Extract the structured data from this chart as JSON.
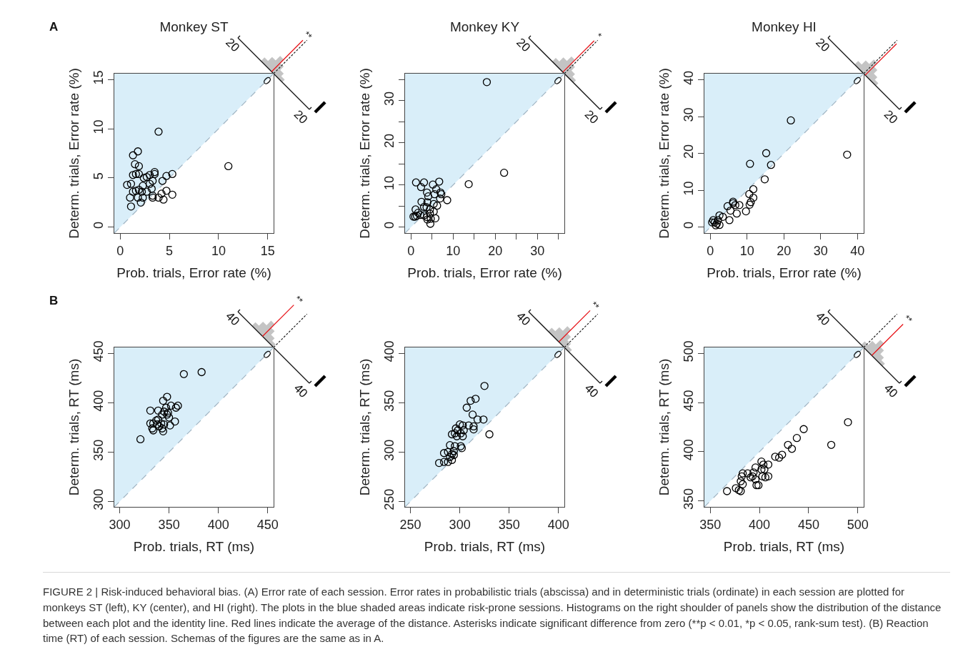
{
  "chart_data": [
    {
      "type": "scatter",
      "title": "Monkey ST",
      "xlabel": "Prob. trials, Error rate (%)",
      "ylabel": "Determ. trials, Error rate (%)",
      "xlim": [
        -0.6,
        15.6
      ],
      "ylim": [
        -0.6,
        15.6
      ],
      "xticks": [
        0,
        5,
        10,
        15
      ],
      "yticks": [
        0,
        5,
        10,
        15
      ],
      "annotations": [
        "20",
        "20",
        "0",
        "**",
        "A"
      ],
      "series": [
        {
          "type": "line",
          "line_style": "dashed",
          "color": "#9fb3c2",
          "x": [
            -0.6,
            15.6
          ],
          "values": [
            -0.6,
            15.6
          ]
        },
        {
          "type": "scatter",
          "marker": "circle",
          "color": "#000000",
          "x": [
            3.9,
            11.0,
            1.8,
            1.3,
            1.5,
            1.9,
            1.3,
            1.6,
            1.9,
            0.7,
            1.1,
            2.4,
            2.7,
            3.0,
            3.5,
            3.5,
            3.3,
            3.0,
            2.3,
            3.2,
            5.3,
            4.7,
            4.3,
            1.3,
            1.6,
            2.2,
            2.7,
            1.0,
            1.8,
            2.3,
            2.1,
            1.1,
            3.3,
            3.3,
            3.9,
            4.2,
            4.7,
            4.4,
            5.3,
            1.9
          ],
          "values": [
            9.7,
            6.2,
            7.7,
            7.3,
            6.4,
            6.2,
            5.3,
            5.4,
            5.4,
            4.3,
            4.4,
            5.0,
            5.1,
            5.3,
            5.6,
            5.4,
            4.7,
            4.4,
            4.2,
            3.9,
            5.4,
            5.2,
            4.7,
            3.6,
            3.7,
            3.6,
            3.6,
            3.0,
            3.0,
            3.0,
            2.5,
            2.1,
            3.2,
            3.0,
            3.0,
            3.4,
            3.7,
            2.8,
            3.3,
            3.8
          ]
        }
      ]
    },
    {
      "type": "scatter",
      "title": "Monkey KY",
      "xlabel": "Prob. trials, Error rate (%)",
      "ylabel": "Determ. trials, Error rate (%)",
      "xlim": [
        -1.4,
        36.4
      ],
      "ylim": [
        -1.4,
        36.4
      ],
      "xticks": [
        0,
        {
          "value": 5,
          "label": null
        },
        10,
        {
          "value": 15,
          "label": null
        },
        20,
        {
          "value": 25,
          "label": null
        },
        30,
        {
          "value": 35,
          "label": null
        }
      ],
      "yticks": [
        0,
        {
          "value": 5,
          "label": null
        },
        10,
        {
          "value": 15,
          "label": null
        },
        20,
        {
          "value": 25,
          "label": null
        },
        30,
        {
          "value": 35,
          "label": null
        }
      ],
      "annotations": [
        "20",
        "20",
        "0",
        "*"
      ],
      "series": [
        {
          "type": "line",
          "line_style": "dashed",
          "color": "#9fb3c2",
          "x": [
            -1.4,
            36.4
          ],
          "values": [
            -1.4,
            36.4
          ]
        },
        {
          "type": "scatter",
          "marker": "circle",
          "color": "#000000",
          "x": [
            18.0,
            22.1,
            13.7,
            8.6,
            1.2,
            3.1,
            2.4,
            5.2,
            6.7,
            6.0,
            3.8,
            4.1,
            5.6,
            7.0,
            7.2,
            6.9,
            2.5,
            3.9,
            5.4,
            6.2,
            3.1,
            3.7,
            4.5,
            5.4,
            1.1,
            1.7,
            0.6,
            1.4,
            2.2,
            3.1,
            3.8,
            4.5,
            4.7,
            5.8,
            4.6,
            3.9,
            1.0
          ],
          "values": [
            34.4,
            12.9,
            10.2,
            6.4,
            10.6,
            10.6,
            9.5,
            10.1,
            10.8,
            9.0,
            8.2,
            7.3,
            7.8,
            8.2,
            7.8,
            6.8,
            6.0,
            5.9,
            5.5,
            5.1,
            4.8,
            4.7,
            4.2,
            3.7,
            4.2,
            3.4,
            2.5,
            2.7,
            2.9,
            2.8,
            2.4,
            3.2,
            2.0,
            2.1,
            0.8,
            1.8,
            2.5
          ]
        }
      ]
    },
    {
      "type": "scatter",
      "title": "Monkey HI",
      "xlabel": "Prob. trials, Error rate (%)",
      "ylabel": "Determ. trials, Error rate (%)",
      "xlim": [
        -1.6,
        41.7
      ],
      "ylim": [
        -1.6,
        41.7
      ],
      "xticks": [
        0,
        10,
        20,
        30,
        40
      ],
      "yticks": [
        0,
        10,
        20,
        30,
        40
      ],
      "annotations": [
        "20",
        "20",
        "0"
      ],
      "series": [
        {
          "type": "line",
          "line_style": "dashed",
          "color": "#9fb3c2",
          "x": [
            -1.6,
            41.7
          ],
          "values": [
            -1.6,
            41.7
          ]
        },
        {
          "type": "scatter",
          "marker": "circle",
          "color": "#000000",
          "x": [
            21.9,
            37.2,
            15.2,
            10.8,
            16.5,
            14.8,
            11.7,
            10.6,
            11.7,
            11.0,
            10.7,
            6.2,
            6.2,
            6.8,
            7.9,
            4.7,
            5.5,
            7.2,
            9.7,
            5.2,
            3.4,
            2.5,
            0.8,
            1.2,
            1.8,
            2.1,
            0.5,
            1.5,
            2.5
          ],
          "values": [
            29.0,
            19.7,
            20.1,
            17.2,
            16.9,
            13.0,
            10.3,
            9.0,
            8.0,
            6.8,
            6.1,
            6.9,
            6.5,
            6.0,
            6.0,
            5.7,
            4.5,
            3.7,
            4.3,
            1.9,
            2.8,
            3.2,
            1.9,
            1.3,
            1.0,
            1.9,
            1.3,
            0.5,
            0.6
          ]
        }
      ]
    },
    {
      "type": "scatter",
      "xlabel": "Prob. trials, RT (ms)",
      "ylabel": "Determ. trials, RT (ms)",
      "xlim": [
        294.5,
        456
      ],
      "ylim": [
        294.5,
        456
      ],
      "xticks": [
        300,
        350,
        400,
        450
      ],
      "yticks": [
        300,
        350,
        400,
        450
      ],
      "annotations": [
        "40",
        "40",
        "0",
        "**",
        "B"
      ],
      "series": [
        {
          "type": "line",
          "line_style": "dashed",
          "color": "#9fb3c2",
          "x": [
            294.5,
            456
          ],
          "values": [
            294.5,
            456
          ]
        },
        {
          "type": "scatter",
          "marker": "circle",
          "color": "#000000",
          "x": [
            321,
            365,
            383,
            348,
            344,
            352,
            359,
            357,
            331,
            339,
            347,
            345,
            349,
            348,
            343,
            350,
            339,
            337,
            331,
            334,
            342,
            356,
            351,
            345,
            333,
            334,
            343,
            344,
            340,
            338
          ],
          "values": [
            363,
            429,
            431,
            406,
            402,
            397,
            397,
            395,
            392,
            392,
            395,
            391,
            390,
            388,
            388,
            385,
            383,
            382,
            379,
            379,
            379,
            381,
            377,
            378,
            374,
            372,
            374,
            371,
            376,
            378
          ]
        }
      ]
    },
    {
      "type": "scatter",
      "xlabel": "Prob. trials, RT (ms)",
      "ylabel": "Determ. trials, RT (ms)",
      "xlim": [
        244.5,
        406
      ],
      "ylim": [
        244.5,
        406
      ],
      "xticks": [
        250,
        300,
        350,
        400
      ],
      "yticks": [
        250,
        300,
        350,
        400
      ],
      "annotations": [
        "40",
        "40",
        "0",
        "**"
      ],
      "series": [
        {
          "type": "line",
          "line_style": "dashed",
          "color": "#9fb3c2",
          "x": [
            244.5,
            406
          ],
          "values": [
            244.5,
            406
          ]
        },
        {
          "type": "scatter",
          "marker": "circle",
          "color": "#000000",
          "x": [
            325,
            316,
            311,
            307,
            313,
            318,
            324,
            330,
            300,
            303,
            309,
            314,
            314,
            304,
            298,
            296,
            292,
            301,
            297,
            303,
            290,
            295,
            301,
            302,
            294,
            284,
            288,
            292,
            290,
            292,
            288,
            284,
            279,
            294,
            295
          ],
          "values": [
            367,
            354,
            352,
            345,
            338,
            333,
            333,
            318,
            328,
            327,
            327,
            323,
            326,
            322,
            322,
            324,
            318,
            319,
            316,
            316,
            307,
            306,
            306,
            304,
            301,
            299,
            300,
            298,
            295,
            292,
            290,
            290,
            289,
            297,
            319
          ]
        }
      ]
    },
    {
      "type": "scatter",
      "xlabel": "Prob. trials, RT (ms)",
      "ylabel": "Determ. trials, RT (ms)",
      "xlim": [
        344,
        506
      ],
      "ylim": [
        344,
        506
      ],
      "xticks": [
        350,
        400,
        450,
        500
      ],
      "yticks": [
        350,
        400,
        450,
        500
      ],
      "annotations": [
        "40",
        "40",
        "0",
        "**"
      ],
      "series": [
        {
          "type": "line",
          "line_style": "dashed",
          "color": "#9fb3c2",
          "x": [
            344,
            506
          ],
          "values": [
            344,
            506
          ]
        },
        {
          "type": "scatter",
          "marker": "circle",
          "color": "#000000",
          "x": [
            490,
            445,
            473,
            438,
            429,
            433,
            423,
            420,
            416,
            409,
            402,
            404,
            396,
            402,
            405,
            409,
            403,
            406,
            394,
            388,
            383,
            382,
            381,
            383,
            391,
            396,
            397,
            399,
            376,
            379,
            381,
            367,
            393
          ],
          "values": [
            430,
            423,
            407,
            414,
            407,
            403,
            397,
            394,
            395,
            387,
            390,
            387,
            384,
            382,
            382,
            375,
            375,
            374,
            379,
            378,
            378,
            375,
            370,
            367,
            374,
            372,
            366,
            366,
            363,
            361,
            360,
            360,
            375
          ]
        }
      ]
    },
    {
      "type": "other",
      "annotations": [
        "FIGURE 2 | Risk-induced behavioral bias. (A) Error rate of each session. Error rates in probabilistic trials (abscissa) and in deterministic trials (ordinate) in each session are plotted for monkeys ST (left), KY (center), and HI (right). The plots in the blue shaded areas indicate risk-prone sessions. Histograms on the right shoulder of panels show the distribution of the distance between each plot and the identity line. Red lines indicate the average of the distance. Asterisks indicate significant difference from zero (**p < 0.01, *p < 0.05, rank-sum test). (B) Reaction time (RT) of each session. Schemas of the figures are the same as in A."
      ]
    }
  ]
}
